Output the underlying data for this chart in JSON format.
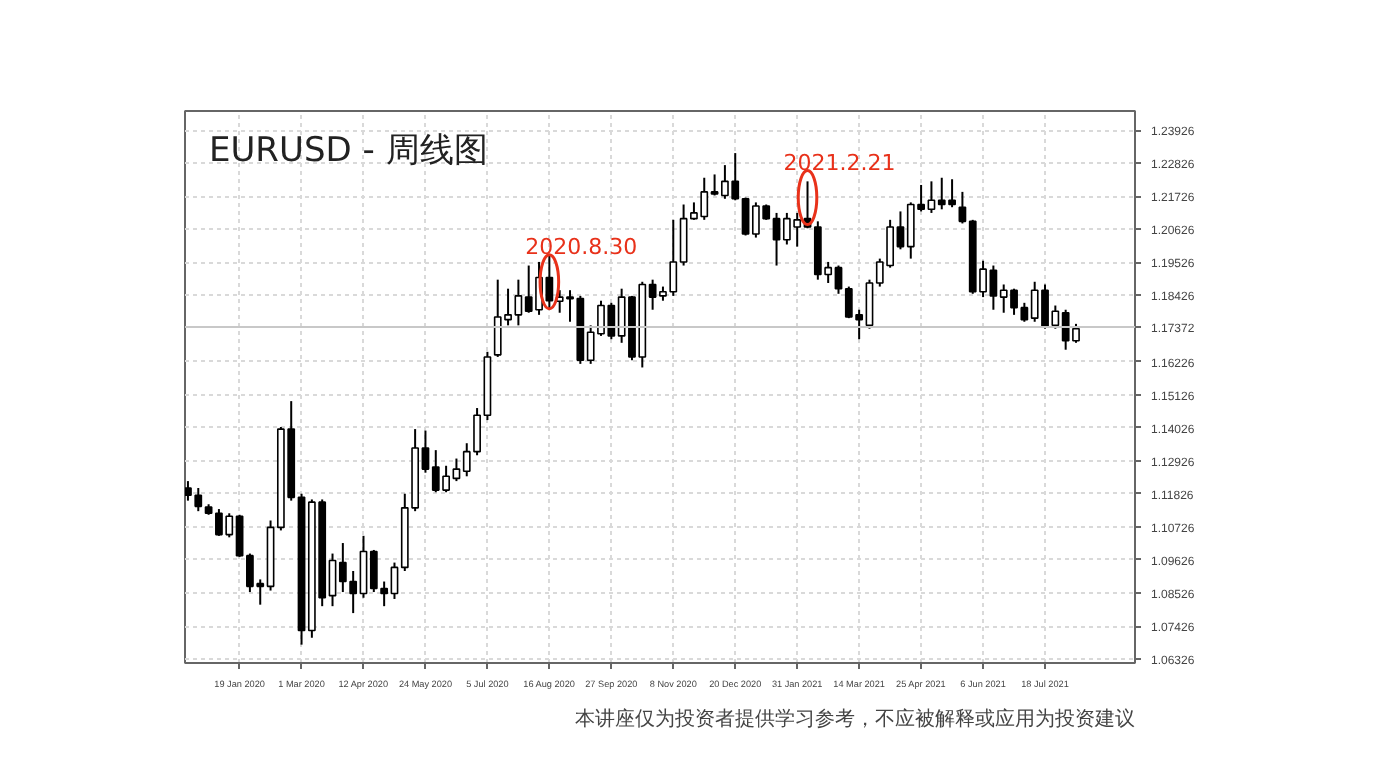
{
  "chart_data": {
    "type": "candlestick",
    "title": "EURUSD - 周线图",
    "x": [
      "2019-12-15",
      "2019-12-22",
      "2019-12-29",
      "2020-01-05",
      "2020-01-12",
      "2020-01-19",
      "2020-01-26",
      "2020-02-02",
      "2020-02-09",
      "2020-02-16",
      "2020-02-23",
      "2020-03-01",
      "2020-03-08",
      "2020-03-15",
      "2020-03-22",
      "2020-03-29",
      "2020-04-05",
      "2020-04-12",
      "2020-04-19",
      "2020-04-26",
      "2020-05-03",
      "2020-05-10",
      "2020-05-17",
      "2020-05-24",
      "2020-05-31",
      "2020-06-07",
      "2020-06-14",
      "2020-06-21",
      "2020-06-28",
      "2020-07-05",
      "2020-07-12",
      "2020-07-19",
      "2020-07-26",
      "2020-08-02",
      "2020-08-09",
      "2020-08-16",
      "2020-08-23",
      "2020-08-30",
      "2020-09-06",
      "2020-09-13",
      "2020-09-20",
      "2020-09-27",
      "2020-10-04",
      "2020-10-11",
      "2020-10-18",
      "2020-10-25",
      "2020-11-01",
      "2020-11-08",
      "2020-11-15",
      "2020-11-22",
      "2020-11-29",
      "2020-12-06",
      "2020-12-13",
      "2020-12-20",
      "2020-12-27",
      "2021-01-03",
      "2021-01-10",
      "2021-01-17",
      "2021-01-24",
      "2021-01-31",
      "2021-02-07",
      "2021-02-14",
      "2021-02-21",
      "2021-02-28",
      "2021-03-07",
      "2021-03-14",
      "2021-03-21",
      "2021-03-28",
      "2021-04-04",
      "2021-04-11",
      "2021-04-18",
      "2021-04-25",
      "2021-05-02",
      "2021-05-09",
      "2021-05-16",
      "2021-05-23",
      "2021-05-30",
      "2021-06-06",
      "2021-06-13",
      "2021-06-20",
      "2021-06-27",
      "2021-07-04",
      "2021-07-11",
      "2021-07-18",
      "2021-07-25",
      "2021-08-01",
      "2021-08-08"
    ],
    "ohlc": [
      [
        1.1202,
        1.1225,
        1.116,
        1.1178
      ],
      [
        1.1178,
        1.1202,
        1.1125,
        1.1141
      ],
      [
        1.1139,
        1.1148,
        1.1113,
        1.1118
      ],
      [
        1.1118,
        1.1132,
        1.1043,
        1.1047
      ],
      [
        1.1047,
        1.1118,
        1.1038,
        1.1108
      ],
      [
        1.1108,
        1.1113,
        1.0973,
        1.0977
      ],
      [
        1.0977,
        1.0984,
        1.0856,
        1.0875
      ],
      [
        1.0884,
        1.0898,
        1.0814,
        1.0875
      ],
      [
        1.0875,
        1.1094,
        1.0861,
        1.1071
      ],
      [
        1.1071,
        1.1405,
        1.1061,
        1.1398
      ],
      [
        1.1398,
        1.1491,
        1.116,
        1.1171
      ],
      [
        1.1171,
        1.1183,
        1.0681,
        1.0728
      ],
      [
        1.0728,
        1.1164,
        1.0704,
        1.1155
      ],
      [
        1.1155,
        1.1164,
        1.0809,
        1.0837
      ],
      [
        1.0844,
        1.0984,
        1.0809,
        1.0961
      ],
      [
        1.0954,
        1.1019,
        1.0856,
        1.0891
      ],
      [
        1.0891,
        1.0926,
        1.0786,
        1.0851
      ],
      [
        1.0851,
        1.1043,
        1.0837,
        1.0991
      ],
      [
        1.0991,
        1.0996,
        1.0856,
        1.0868
      ],
      [
        1.0868,
        1.0891,
        1.0809,
        1.0851
      ],
      [
        1.0851,
        1.0954,
        1.0833,
        1.0938
      ],
      [
        1.0938,
        1.1183,
        1.0926,
        1.1136
      ],
      [
        1.1136,
        1.1398,
        1.1125,
        1.1335
      ],
      [
        1.1335,
        1.1393,
        1.1253,
        1.1265
      ],
      [
        1.1272,
        1.1328,
        1.1188,
        1.1195
      ],
      [
        1.1195,
        1.1276,
        1.1188,
        1.1241
      ],
      [
        1.1234,
        1.13,
        1.1225,
        1.1265
      ],
      [
        1.1258,
        1.1351,
        1.1241,
        1.1323
      ],
      [
        1.1323,
        1.1468,
        1.1311,
        1.1444
      ],
      [
        1.1444,
        1.1655,
        1.1428,
        1.1638
      ],
      [
        1.1645,
        1.1895,
        1.1638,
        1.1771
      ],
      [
        1.1762,
        1.1865,
        1.1743,
        1.1778
      ],
      [
        1.1778,
        1.1895,
        1.1743,
        1.1841
      ],
      [
        1.1837,
        1.1942,
        1.1785,
        1.179
      ],
      [
        1.1795,
        1.1954,
        1.1778,
        1.1902
      ],
      [
        1.1902,
        1.1977,
        1.1795,
        1.1825
      ],
      [
        1.1823,
        1.186,
        1.1785,
        1.1837
      ],
      [
        1.1832,
        1.186,
        1.1755,
        1.1837
      ],
      [
        1.1832,
        1.1841,
        1.1615,
        1.1627
      ],
      [
        1.1627,
        1.1743,
        1.1615,
        1.172
      ],
      [
        1.1715,
        1.1825,
        1.1708,
        1.1809
      ],
      [
        1.1809,
        1.1818,
        1.1697,
        1.1708
      ],
      [
        1.1708,
        1.1865,
        1.1685,
        1.1837
      ],
      [
        1.1837,
        1.1841,
        1.1627,
        1.1638
      ],
      [
        1.1638,
        1.1888,
        1.1603,
        1.1879
      ],
      [
        1.1879,
        1.1895,
        1.1795,
        1.1837
      ],
      [
        1.1841,
        1.1872,
        1.1825,
        1.1855
      ],
      [
        1.1855,
        1.2094,
        1.1841,
        1.1954
      ],
      [
        1.1954,
        1.2145,
        1.1942,
        1.2098
      ],
      [
        1.2098,
        1.2152,
        1.2094,
        1.2117
      ],
      [
        1.2105,
        1.2234,
        1.2094,
        1.2187
      ],
      [
        1.2187,
        1.2245,
        1.2175,
        1.218
      ],
      [
        1.2175,
        1.2276,
        1.2164,
        1.2222
      ],
      [
        1.2222,
        1.2316,
        1.2159,
        1.2164
      ],
      [
        1.2164,
        1.2168,
        1.2042,
        1.2047
      ],
      [
        1.2047,
        1.2152,
        1.2035,
        1.214
      ],
      [
        1.214,
        1.2145,
        1.2094,
        1.2098
      ],
      [
        1.2098,
        1.2117,
        1.1942,
        1.2028
      ],
      [
        1.2028,
        1.2117,
        1.2012,
        1.2098
      ],
      [
        1.207,
        1.2117,
        1.2005,
        1.2094
      ],
      [
        1.2098,
        1.2222,
        1.2066,
        1.207
      ],
      [
        1.207,
        1.2089,
        1.1895,
        1.1912
      ],
      [
        1.1912,
        1.1954,
        1.1884,
        1.1935
      ],
      [
        1.1935,
        1.1942,
        1.1848,
        1.1865
      ],
      [
        1.1865,
        1.1872,
        1.1767,
        1.1771
      ],
      [
        1.1778,
        1.1795,
        1.1697,
        1.1762
      ],
      [
        1.1743,
        1.1895,
        1.1732,
        1.1884
      ],
      [
        1.1884,
        1.1965,
        1.1872,
        1.1954
      ],
      [
        1.1942,
        1.2094,
        1.1935,
        1.207
      ],
      [
        1.207,
        1.2122,
        1.1996,
        1.2005
      ],
      [
        1.2005,
        1.2152,
        1.1965,
        1.2145
      ],
      [
        1.2145,
        1.221,
        1.2122,
        1.2129
      ],
      [
        1.2129,
        1.2222,
        1.2117,
        1.2159
      ],
      [
        1.2159,
        1.2234,
        1.2129,
        1.2145
      ],
      [
        1.2159,
        1.2229,
        1.2136,
        1.2145
      ],
      [
        1.2136,
        1.2187,
        1.2082,
        1.2089
      ],
      [
        1.2089,
        1.2094,
        1.1848,
        1.1855
      ],
      [
        1.1855,
        1.1958,
        1.1837,
        1.193
      ],
      [
        1.1926,
        1.1942,
        1.1795,
        1.1841
      ],
      [
        1.1837,
        1.1879,
        1.1785,
        1.186
      ],
      [
        1.186,
        1.1865,
        1.1778,
        1.1802
      ],
      [
        1.1802,
        1.1818,
        1.1755,
        1.1762
      ],
      [
        1.1767,
        1.1888,
        1.1755,
        1.186
      ],
      [
        1.186,
        1.1879,
        1.1732,
        1.1739
      ],
      [
        1.1743,
        1.1809,
        1.1732,
        1.179
      ],
      [
        1.1785,
        1.1795,
        1.1662,
        1.1692
      ],
      [
        1.1692,
        1.1748,
        1.1685,
        1.1732
      ]
    ],
    "xlim": [
      "2019-12-13",
      "2021-09-17"
    ],
    "xticks": [
      {
        "value": "2020-01-19",
        "label": "19 Jan 2020"
      },
      {
        "value": "2020-03-01",
        "label": "1 Mar 2020"
      },
      {
        "value": "2020-04-12",
        "label": "12 Apr 2020"
      },
      {
        "value": "2020-05-24",
        "label": "24 May 2020"
      },
      {
        "value": "2020-07-05",
        "label": "5 Jul 2020"
      },
      {
        "value": "2020-08-16",
        "label": "16 Aug 2020"
      },
      {
        "value": "2020-09-27",
        "label": "27 Sep 2020"
      },
      {
        "value": "2020-11-08",
        "label": "8 Nov 2020"
      },
      {
        "value": "2020-12-20",
        "label": "20 Dec 2020"
      },
      {
        "value": "2021-01-31",
        "label": "31 Jan 2021"
      },
      {
        "value": "2021-03-14",
        "label": "14 Mar 2021"
      },
      {
        "value": "2021-04-25",
        "label": "25 Apr 2021"
      },
      {
        "value": "2021-06-06",
        "label": "6 Jun 2021"
      },
      {
        "value": "2021-07-18",
        "label": "18 Jul 2021"
      }
    ],
    "ylim": [
      1.062,
      1.2456
    ],
    "yticks": [
      1.06326,
      1.07426,
      1.08526,
      1.09626,
      1.10726,
      1.11826,
      1.12926,
      1.14026,
      1.15126,
      1.16226,
      1.18426,
      1.19526,
      1.20626,
      1.21726,
      1.22826,
      1.23926
    ],
    "grid": true,
    "ref_lines": [
      {
        "axis": "y",
        "value": 1.17372,
        "label": "1.17372",
        "color": "#c8c8c8"
      }
    ],
    "annotations": [
      {
        "text": "2020.8.30",
        "x": "2020-08-16",
        "y": 1.1888
      },
      {
        "text": "2021.2.21",
        "x": "2021-02-07",
        "y": 1.2168
      },
      "本讲座仅为投资者提供学习参考，不应被解释或应用为投资建议"
    ]
  }
}
